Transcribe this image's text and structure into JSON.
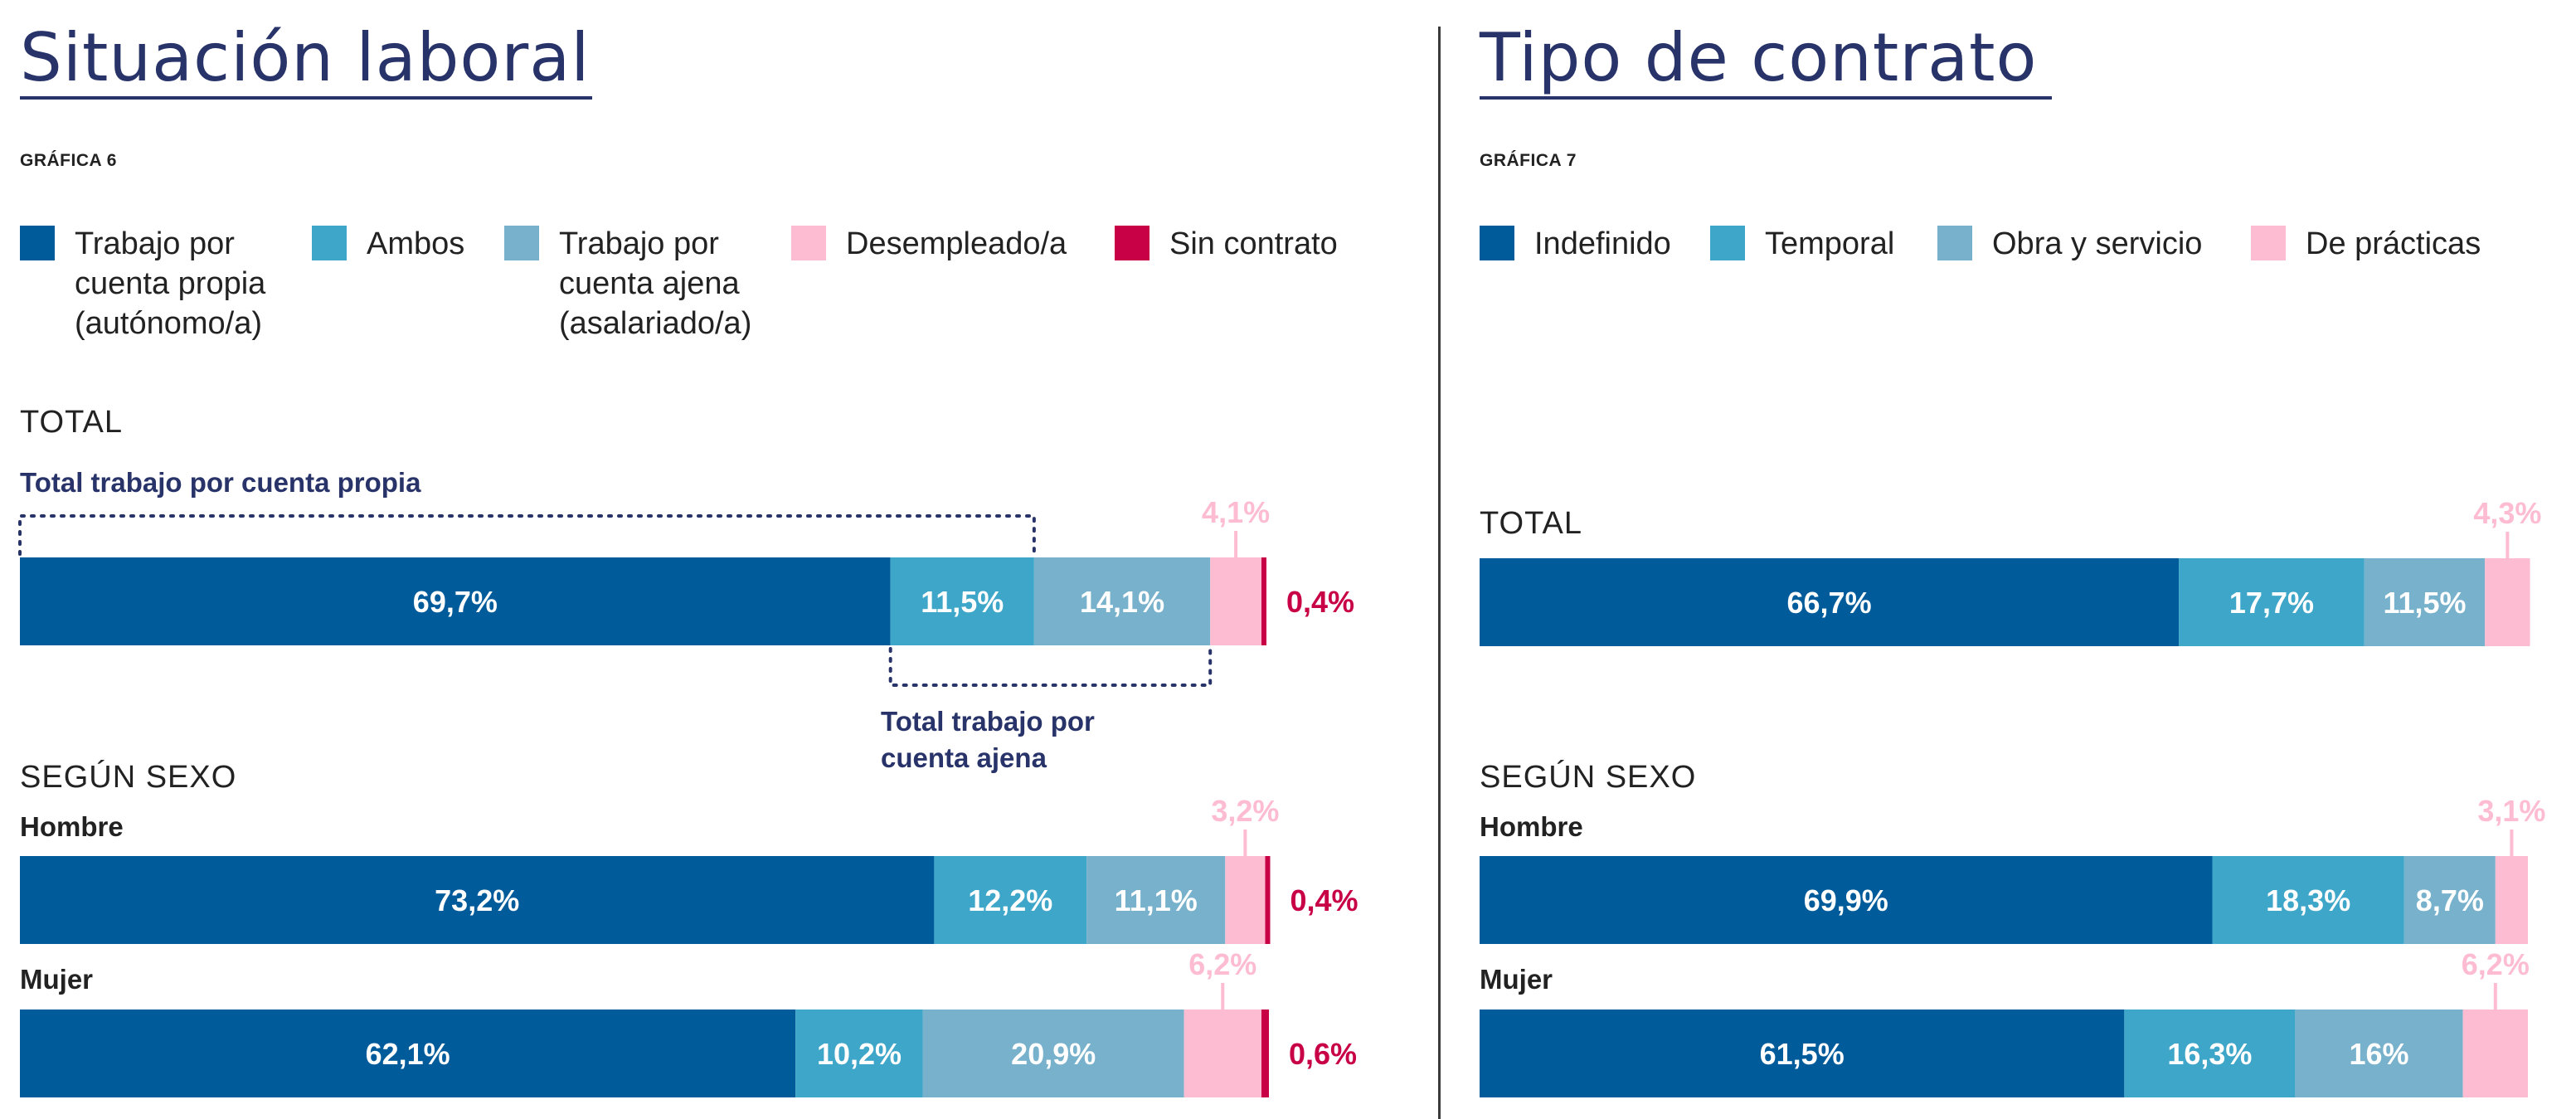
{
  "chart_data": [
    {
      "type": "bar",
      "orientation": "horizontal-stacked",
      "title": "Situación laboral",
      "figure_label": "GRÁFICA 6",
      "legend": [
        {
          "label": "Trabajo por\ncuenta propia\n(autónomo/a)",
          "color": "#005b9b"
        },
        {
          "label": "Ambos",
          "color": "#3ea6c8"
        },
        {
          "label": "Trabajo por\ncuenta ajena\n(asalariado/a)",
          "color": "#78b1cb"
        },
        {
          "label": "Desempleado/a",
          "color": "#fdbcd1"
        },
        {
          "label": "Sin contrato",
          "color": "#c80046"
        }
      ],
      "section_total": "TOTAL",
      "section_sex": "SEGÚN SEXO",
      "annotations": {
        "own_account_total": "Total trabajo por cuenta propia",
        "employee_total": "Total trabajo por\ncuenta ajena"
      },
      "series_names": [
        "Trabajo por cuenta propia (autónomo/a)",
        "Ambos",
        "Trabajo por cuenta ajena (asalariado/a)",
        "Desempleado/a",
        "Sin contrato"
      ],
      "bars": [
        {
          "group": "",
          "values": [
            69.7,
            11.5,
            14.1,
            4.1,
            0.4
          ],
          "labels": [
            "69,7%",
            "11,5%",
            "14,1%",
            "4,1%",
            "0,4%"
          ]
        },
        {
          "group": "Hombre",
          "values": [
            73.2,
            12.2,
            11.1,
            3.2,
            0.4
          ],
          "labels": [
            "73,2%",
            "12,2%",
            "11,1%",
            "3,2%",
            "0,4%"
          ]
        },
        {
          "group": "Mujer",
          "values": [
            62.1,
            10.2,
            20.9,
            6.2,
            0.6
          ],
          "labels": [
            "62,1%",
            "10,2%",
            "20,9%",
            "6,2%",
            "0,6%"
          ]
        }
      ]
    },
    {
      "type": "bar",
      "orientation": "horizontal-stacked",
      "title": "Tipo de contrato",
      "figure_label": "GRÁFICA 7",
      "legend": [
        {
          "label": "Indefinido",
          "color": "#005b9b"
        },
        {
          "label": "Temporal",
          "color": "#3ea6c8"
        },
        {
          "label": "Obra y servicio",
          "color": "#78b1cb"
        },
        {
          "label": "De prácticas",
          "color": "#fdbcd1"
        }
      ],
      "section_total": "TOTAL",
      "section_sex": "SEGÚN SEXO",
      "series_names": [
        "Indefinido",
        "Temporal",
        "Obra y servicio",
        "De prácticas"
      ],
      "bars": [
        {
          "group": "",
          "values": [
            66.7,
            17.7,
            11.5,
            4.3
          ],
          "labels": [
            "66,7%",
            "17,7%",
            "11,5%",
            "4,3%"
          ]
        },
        {
          "group": "Hombre",
          "values": [
            69.9,
            18.3,
            8.7,
            3.1
          ],
          "labels": [
            "69,9%",
            "18,3%",
            "8,7%",
            "3,1%"
          ]
        },
        {
          "group": "Mujer",
          "values": [
            61.5,
            16.3,
            16,
            6.2
          ],
          "labels": [
            "61,5%",
            "16,3%",
            "16%",
            "6,2%"
          ]
        }
      ]
    }
  ]
}
